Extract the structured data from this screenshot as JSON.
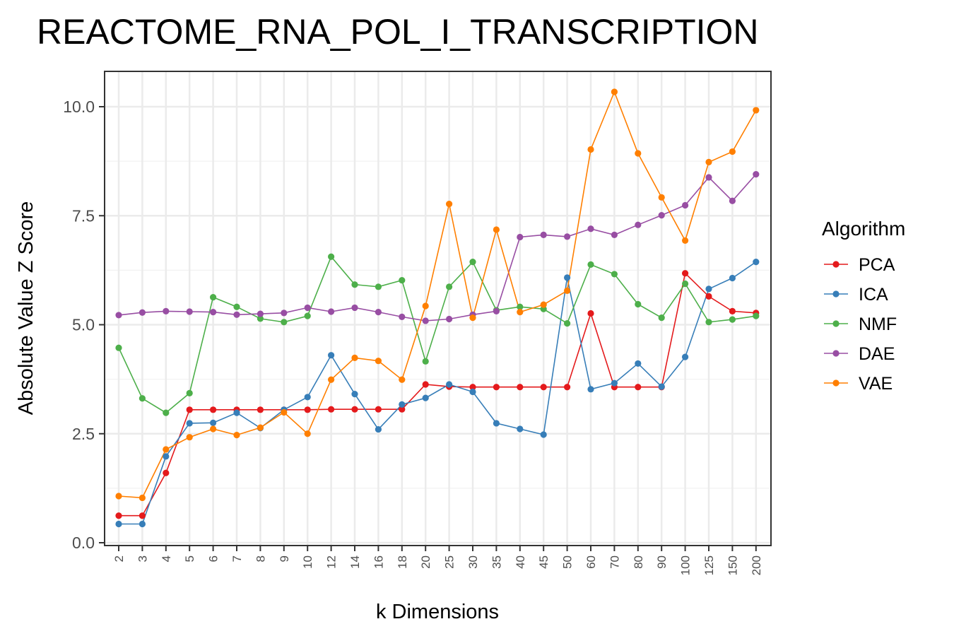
{
  "chart_data": {
    "type": "line",
    "title": "REACTOME_RNA_POL_I_TRANSCRIPTION",
    "xlabel": "k Dimensions",
    "ylabel": "Absolute Value Z Score",
    "categories": [
      "2",
      "3",
      "4",
      "5",
      "6",
      "7",
      "8",
      "9",
      "10",
      "12",
      "14",
      "16",
      "18",
      "20",
      "25",
      "30",
      "35",
      "40",
      "45",
      "50",
      "60",
      "70",
      "80",
      "90",
      "100",
      "125",
      "150",
      "200"
    ],
    "ylim": [
      0,
      10.5
    ],
    "yticks": [
      0,
      2.5,
      5,
      7.5,
      10
    ],
    "ytick_labels": [
      "0.0",
      "2.5",
      "5.0",
      "7.5",
      "10.0"
    ],
    "grid": true,
    "legend": {
      "title": "Algorithm",
      "position": "right"
    },
    "series": [
      {
        "name": "PCA",
        "color": "#e41a1c",
        "values": [
          0.62,
          0.62,
          1.6,
          3.05,
          3.05,
          3.05,
          3.05,
          3.05,
          3.05,
          3.06,
          3.06,
          3.06,
          3.06,
          3.63,
          3.58,
          3.57,
          3.57,
          3.57,
          3.57,
          3.57,
          5.26,
          3.57,
          3.57,
          3.57,
          6.18,
          5.65,
          5.31,
          5.27
        ]
      },
      {
        "name": "ICA",
        "color": "#377eb8",
        "values": [
          0.43,
          0.43,
          1.98,
          2.74,
          2.75,
          2.98,
          2.63,
          3.05,
          3.34,
          4.3,
          3.41,
          2.6,
          3.17,
          3.32,
          3.63,
          3.46,
          2.74,
          2.61,
          2.48,
          6.08,
          3.52,
          3.66,
          4.11,
          3.58,
          4.26,
          5.82,
          6.07,
          6.44
        ]
      },
      {
        "name": "NMF",
        "color": "#4daf4a",
        "values": [
          4.47,
          3.31,
          2.98,
          3.43,
          5.63,
          5.41,
          5.14,
          5.06,
          5.2,
          6.56,
          5.92,
          5.87,
          6.02,
          4.16,
          5.87,
          6.44,
          5.33,
          5.41,
          5.36,
          5.03,
          6.38,
          6.16,
          5.47,
          5.16,
          5.94,
          5.06,
          5.12,
          5.2
        ]
      },
      {
        "name": "DAE",
        "color": "#984ea3",
        "values": [
          5.22,
          5.28,
          5.31,
          5.3,
          5.29,
          5.23,
          5.25,
          5.27,
          5.39,
          5.3,
          5.39,
          5.29,
          5.18,
          5.09,
          5.13,
          5.23,
          5.31,
          7.01,
          7.06,
          7.02,
          7.2,
          7.06,
          7.29,
          7.51,
          7.74,
          8.38,
          7.84,
          8.45
        ]
      },
      {
        "name": "VAE",
        "color": "#ff7f00",
        "values": [
          1.07,
          1.03,
          2.14,
          2.42,
          2.61,
          2.47,
          2.64,
          2.99,
          2.5,
          3.74,
          4.24,
          4.17,
          3.74,
          5.43,
          7.77,
          5.16,
          7.18,
          5.29,
          5.46,
          5.78,
          9.02,
          10.34,
          8.93,
          7.92,
          6.93,
          8.73,
          8.97,
          9.92
        ]
      }
    ]
  }
}
